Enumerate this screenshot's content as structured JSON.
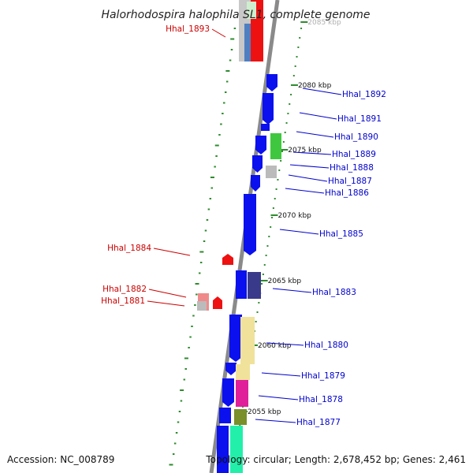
{
  "title": "Halorhodospira halophila SL1, complete genome",
  "accession": "Accession: NC_008789",
  "summary": "Topology: circular; Length: 2,678,452 bp; Genes: 2,461",
  "colors": {
    "forward_label": "#0000cc",
    "reverse_label": "#cc0000",
    "backbone": "#8a8a8a",
    "ruler": "#2e8b2e"
  },
  "ticks": [
    "2085 kbp",
    "2080 kbp",
    "2075 kbp",
    "2070 kbp",
    "2065 kbp",
    "2060 kbp",
    "2055 kbp"
  ],
  "forward_genes": [
    "Hhal_1892",
    "Hhal_1891",
    "Hhal_1890",
    "Hhal_1889",
    "Hhal_1888",
    "Hhal_1887",
    "Hhal_1886",
    "Hhal_1885",
    "Hhal_1883",
    "Hhal_1880",
    "Hhal_1879",
    "Hhal_1878",
    "Hhal_1877"
  ],
  "reverse_genes": [
    "Hhal_1893",
    "Hhal_1884",
    "Hhal_1882",
    "Hhal_1881"
  ]
}
